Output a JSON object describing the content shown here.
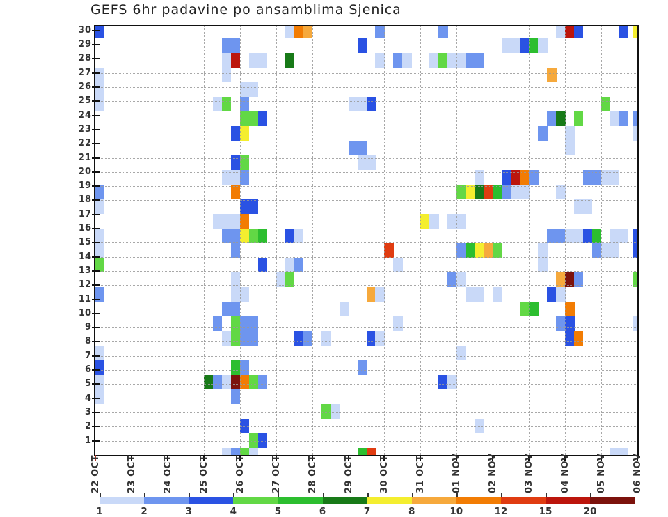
{
  "title": "GEFS 6hr padavine po ansamblima Sjenica",
  "chart_data": {
    "type": "heatmap",
    "title": "GEFS 6hr padavine po ansamblima Sjenica",
    "subtitle": "",
    "x_axis": {
      "tick_labels": [
        "22 OCT",
        "23 OCT",
        "24 OCT",
        "25 OCT",
        "26 OCT",
        "27 OCT",
        "28 OCT",
        "29 OCT",
        "30 OCT",
        "31 OCT",
        "01 NOV",
        "02 NOV",
        "03 NOV",
        "04 NOV",
        "05 NOV",
        "06 NOV"
      ],
      "steps_per_day": 4,
      "columns": 60
    },
    "y_axis": {
      "tick_labels": [
        "30",
        "29",
        "28",
        "27",
        "26",
        "25",
        "24",
        "23",
        "22",
        "21",
        "20",
        "19",
        "18",
        "17",
        "16",
        "15",
        "14",
        "13",
        "12",
        "11",
        "10",
        "9",
        "8",
        "7",
        "6",
        "5",
        "4",
        "3",
        "2",
        "1"
      ],
      "meaning": "ensemble member"
    },
    "legend": {
      "boundary_labels": [
        "1",
        "2",
        "3",
        "4",
        "5",
        "6",
        "7",
        "8",
        "10",
        "12",
        "15",
        "20"
      ],
      "colors": [
        "#c9d9f8",
        "#6e95ef",
        "#2a52e3",
        "#62d845",
        "#2cbe2f",
        "#187a18",
        "#f4ee2f",
        "#f6a93c",
        "#f27c03",
        "#e03c11",
        "#bc150c",
        "#7c120c"
      ],
      "position": "bottom"
    },
    "grid": {
      "h_dotted_per_member": true,
      "v_dotted_per_day": true
    },
    "cell_format": "[member, sixhour_column_from_22OCT00, legend_color_index]",
    "cells": [
      [
        30,
        0,
        2
      ],
      [
        30,
        21,
        0
      ],
      [
        30,
        22,
        8
      ],
      [
        30,
        23,
        7
      ],
      [
        30,
        31,
        1
      ],
      [
        30,
        38,
        1
      ],
      [
        30,
        51,
        0
      ],
      [
        30,
        52,
        10
      ],
      [
        30,
        53,
        2
      ],
      [
        30,
        58,
        2
      ],
      [
        30,
        59,
        6
      ],
      [
        29,
        14,
        1
      ],
      [
        29,
        15,
        1
      ],
      [
        29,
        29,
        2
      ],
      [
        29,
        45,
        0
      ],
      [
        29,
        46,
        0
      ],
      [
        29,
        47,
        2
      ],
      [
        29,
        48,
        4
      ],
      [
        29,
        49,
        0
      ],
      [
        28,
        14,
        0
      ],
      [
        28,
        15,
        10
      ],
      [
        28,
        17,
        0
      ],
      [
        28,
        18,
        0
      ],
      [
        28,
        21,
        5
      ],
      [
        28,
        31,
        0
      ],
      [
        28,
        33,
        1
      ],
      [
        28,
        34,
        0
      ],
      [
        28,
        37,
        0
      ],
      [
        28,
        38,
        3
      ],
      [
        28,
        39,
        0
      ],
      [
        28,
        40,
        0
      ],
      [
        28,
        41,
        1
      ],
      [
        28,
        42,
        1
      ],
      [
        27,
        0,
        0
      ],
      [
        27,
        14,
        0
      ],
      [
        27,
        50,
        7
      ],
      [
        26,
        0,
        0
      ],
      [
        26,
        16,
        0
      ],
      [
        26,
        17,
        0
      ],
      [
        25,
        0,
        0
      ],
      [
        25,
        13,
        0
      ],
      [
        25,
        14,
        3
      ],
      [
        25,
        16,
        1
      ],
      [
        25,
        28,
        0
      ],
      [
        25,
        29,
        0
      ],
      [
        25,
        30,
        2
      ],
      [
        25,
        56,
        3
      ],
      [
        24,
        16,
        3
      ],
      [
        24,
        17,
        3
      ],
      [
        24,
        18,
        2
      ],
      [
        24,
        50,
        1
      ],
      [
        24,
        51,
        5
      ],
      [
        24,
        53,
        3
      ],
      [
        24,
        57,
        0
      ],
      [
        24,
        58,
        1
      ],
      [
        24,
        59,
        1
      ],
      [
        23,
        15,
        2
      ],
      [
        23,
        16,
        6
      ],
      [
        23,
        49,
        1
      ],
      [
        23,
        52,
        0
      ],
      [
        23,
        59,
        0
      ],
      [
        22,
        28,
        1
      ],
      [
        22,
        29,
        1
      ],
      [
        22,
        52,
        0
      ],
      [
        21,
        15,
        2
      ],
      [
        21,
        16,
        3
      ],
      [
        21,
        29,
        0
      ],
      [
        21,
        30,
        0
      ],
      [
        20,
        14,
        0
      ],
      [
        20,
        15,
        0
      ],
      [
        20,
        16,
        1
      ],
      [
        20,
        42,
        0
      ],
      [
        20,
        45,
        2
      ],
      [
        20,
        46,
        10
      ],
      [
        20,
        47,
        8
      ],
      [
        20,
        48,
        1
      ],
      [
        20,
        54,
        1
      ],
      [
        20,
        55,
        1
      ],
      [
        20,
        56,
        0
      ],
      [
        20,
        57,
        0
      ],
      [
        19,
        0,
        1
      ],
      [
        19,
        15,
        8
      ],
      [
        19,
        40,
        3
      ],
      [
        19,
        41,
        6
      ],
      [
        19,
        42,
        5
      ],
      [
        19,
        43,
        9
      ],
      [
        19,
        44,
        4
      ],
      [
        19,
        45,
        1
      ],
      [
        19,
        46,
        0
      ],
      [
        19,
        47,
        0
      ],
      [
        19,
        51,
        0
      ],
      [
        18,
        0,
        0
      ],
      [
        18,
        16,
        2
      ],
      [
        18,
        17,
        2
      ],
      [
        18,
        53,
        0
      ],
      [
        18,
        54,
        0
      ],
      [
        17,
        13,
        0
      ],
      [
        17,
        14,
        0
      ],
      [
        17,
        15,
        0
      ],
      [
        17,
        16,
        8
      ],
      [
        17,
        36,
        6
      ],
      [
        17,
        37,
        0
      ],
      [
        17,
        39,
        0
      ],
      [
        17,
        40,
        0
      ],
      [
        16,
        0,
        0
      ],
      [
        16,
        14,
        1
      ],
      [
        16,
        15,
        1
      ],
      [
        16,
        16,
        6
      ],
      [
        16,
        17,
        3
      ],
      [
        16,
        18,
        4
      ],
      [
        16,
        21,
        2
      ],
      [
        16,
        22,
        0
      ],
      [
        16,
        50,
        1
      ],
      [
        16,
        51,
        1
      ],
      [
        16,
        52,
        0
      ],
      [
        16,
        53,
        0
      ],
      [
        16,
        54,
        2
      ],
      [
        16,
        55,
        4
      ],
      [
        16,
        57,
        0
      ],
      [
        16,
        58,
        0
      ],
      [
        16,
        59,
        2
      ],
      [
        15,
        0,
        0
      ],
      [
        15,
        15,
        1
      ],
      [
        15,
        32,
        9
      ],
      [
        15,
        40,
        1
      ],
      [
        15,
        41,
        4
      ],
      [
        15,
        42,
        6
      ],
      [
        15,
        43,
        7
      ],
      [
        15,
        44,
        3
      ],
      [
        15,
        49,
        0
      ],
      [
        15,
        55,
        1
      ],
      [
        15,
        56,
        0
      ],
      [
        15,
        57,
        0
      ],
      [
        15,
        59,
        2
      ],
      [
        14,
        0,
        3
      ],
      [
        14,
        18,
        2
      ],
      [
        14,
        21,
        0
      ],
      [
        14,
        22,
        1
      ],
      [
        14,
        33,
        0
      ],
      [
        14,
        49,
        0
      ],
      [
        13,
        15,
        0
      ],
      [
        13,
        20,
        0
      ],
      [
        13,
        21,
        3
      ],
      [
        13,
        39,
        1
      ],
      [
        13,
        40,
        0
      ],
      [
        13,
        51,
        7
      ],
      [
        13,
        52,
        11
      ],
      [
        13,
        53,
        1
      ],
      [
        13,
        59,
        3
      ],
      [
        12,
        0,
        1
      ],
      [
        12,
        15,
        0
      ],
      [
        12,
        16,
        0
      ],
      [
        12,
        30,
        7
      ],
      [
        12,
        31,
        0
      ],
      [
        12,
        41,
        0
      ],
      [
        12,
        42,
        0
      ],
      [
        12,
        44,
        0
      ],
      [
        12,
        50,
        2
      ],
      [
        12,
        51,
        0
      ],
      [
        11,
        14,
        1
      ],
      [
        11,
        15,
        1
      ],
      [
        11,
        27,
        0
      ],
      [
        11,
        47,
        3
      ],
      [
        11,
        48,
        4
      ],
      [
        11,
        52,
        8
      ],
      [
        10,
        13,
        1
      ],
      [
        10,
        15,
        3
      ],
      [
        10,
        16,
        1
      ],
      [
        10,
        17,
        1
      ],
      [
        10,
        33,
        0
      ],
      [
        10,
        51,
        1
      ],
      [
        10,
        52,
        2
      ],
      [
        10,
        59,
        0
      ],
      [
        9,
        14,
        0
      ],
      [
        9,
        15,
        3
      ],
      [
        9,
        16,
        1
      ],
      [
        9,
        17,
        1
      ],
      [
        9,
        22,
        2
      ],
      [
        9,
        23,
        1
      ],
      [
        9,
        25,
        0
      ],
      [
        9,
        30,
        2
      ],
      [
        9,
        31,
        0
      ],
      [
        9,
        52,
        2
      ],
      [
        9,
        53,
        8
      ],
      [
        8,
        0,
        0
      ],
      [
        8,
        40,
        0
      ],
      [
        7,
        0,
        2
      ],
      [
        7,
        15,
        4
      ],
      [
        7,
        16,
        1
      ],
      [
        7,
        29,
        1
      ],
      [
        6,
        0,
        0
      ],
      [
        6,
        12,
        5
      ],
      [
        6,
        13,
        1
      ],
      [
        6,
        14,
        0
      ],
      [
        6,
        15,
        11
      ],
      [
        6,
        16,
        8
      ],
      [
        6,
        17,
        3
      ],
      [
        6,
        18,
        1
      ],
      [
        6,
        38,
        2
      ],
      [
        6,
        39,
        0
      ],
      [
        5,
        0,
        0
      ],
      [
        5,
        15,
        1
      ],
      [
        4,
        25,
        3
      ],
      [
        4,
        26,
        0
      ],
      [
        3,
        16,
        2
      ],
      [
        3,
        42,
        0
      ],
      [
        2,
        17,
        3
      ],
      [
        2,
        18,
        2
      ],
      [
        1,
        14,
        0
      ],
      [
        1,
        15,
        1
      ],
      [
        1,
        16,
        3
      ],
      [
        1,
        17,
        0
      ],
      [
        1,
        29,
        4
      ],
      [
        1,
        30,
        9
      ],
      [
        1,
        57,
        0
      ],
      [
        1,
        58,
        0
      ]
    ]
  }
}
